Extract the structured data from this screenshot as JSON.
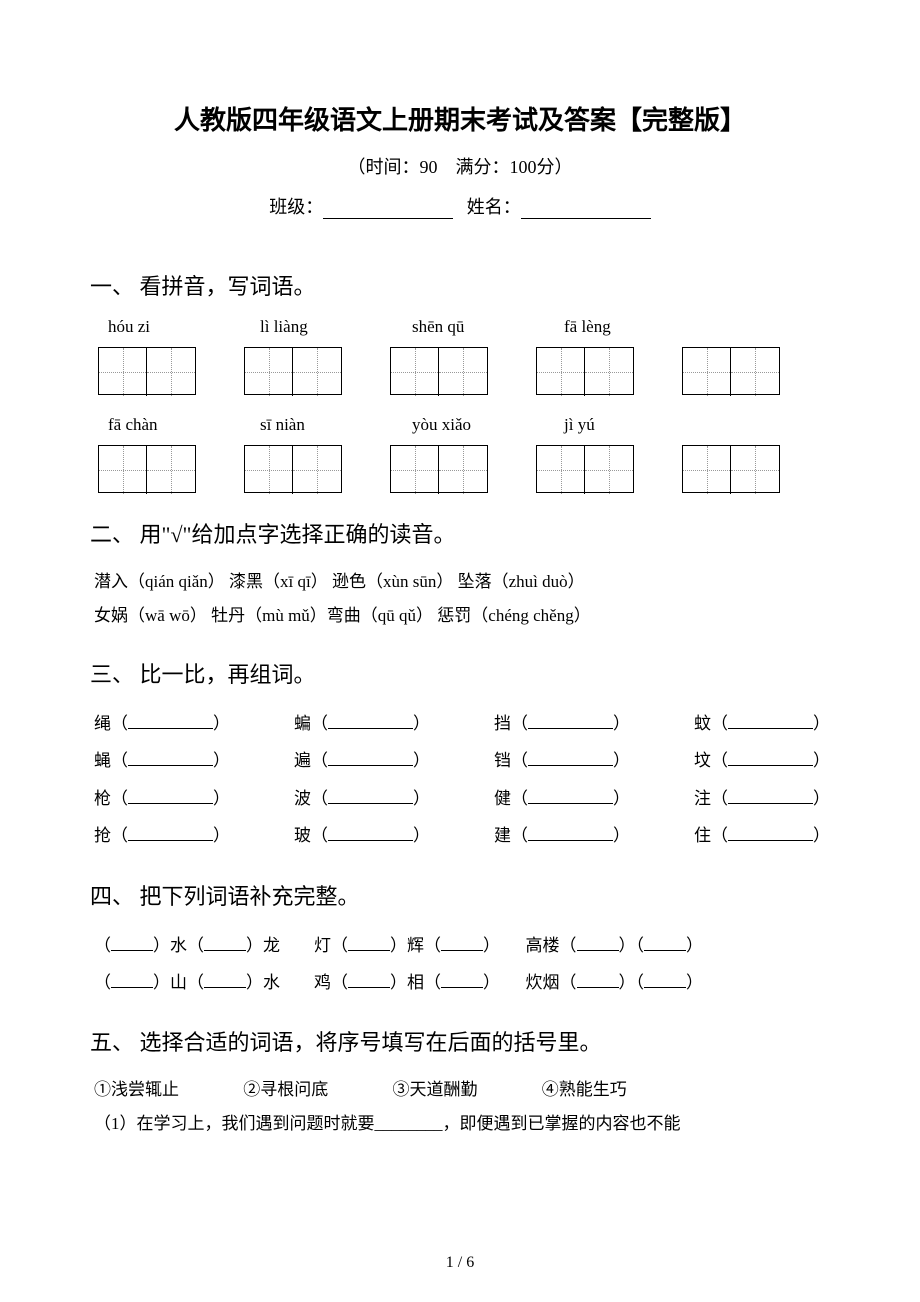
{
  "title": "人教版四年级语文上册期末考试及答案【完整版】",
  "subtitle": "（时间：90　满分：100分）",
  "info": {
    "class_label": "班级：",
    "name_label": "姓名："
  },
  "section1": {
    "header": "一、 看拼音，写词语。",
    "row1": [
      "hóu zi",
      "lì liàng",
      "shēn qū",
      "fā lèng"
    ],
    "row2": [
      "fā chàn",
      "sī niàn",
      "yòu xiǎo",
      "jì yú"
    ]
  },
  "section2": {
    "header": "二、 用\"√\"给加点字选择正确的读音。",
    "line1": "潜入（qián qiǎn） 漆黑（xī qī） 逊色（xùn sūn） 坠落（zhuì duò）",
    "line2": "女娲（wā wō） 牡丹（mù mǔ）弯曲（qū qǔ） 惩罚（chéng chěng）"
  },
  "section3": {
    "header": "三、 比一比，再组词。",
    "rows": [
      [
        "绳",
        "蝙",
        "挡",
        "蚊"
      ],
      [
        "蝇",
        "遍",
        "铛",
        "坟"
      ],
      [
        "枪",
        "波",
        "健",
        "注"
      ],
      [
        "抢",
        "玻",
        "建",
        "住"
      ]
    ]
  },
  "section4": {
    "header": "四、 把下列词语补充完整。",
    "line1_parts": [
      "水",
      "龙　　灯",
      "辉",
      "　　高楼"
    ],
    "line2_parts": [
      "山",
      "水　　鸡",
      "相",
      "　　炊烟"
    ]
  },
  "section5": {
    "header": "五、 选择合适的词语，将序号填写在后面的括号里。",
    "options": [
      "①浅尝辄止",
      "②寻根问底",
      "③天道酬勤",
      "④熟能生巧"
    ],
    "q1": "（1）在学习上，我们遇到问题时就要________，即便遇到已掌握的内容也不能"
  },
  "page_num": "1 / 6"
}
